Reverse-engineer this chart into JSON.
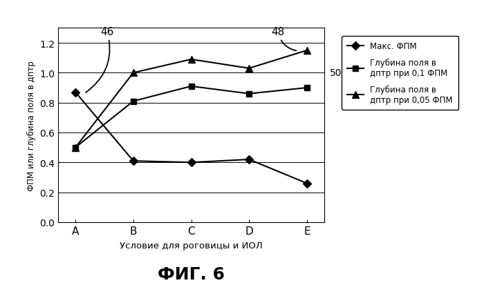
{
  "categories": [
    "A",
    "B",
    "C",
    "D",
    "E"
  ],
  "series_maks_fpm": [
    0.87,
    0.41,
    0.4,
    0.42,
    0.26
  ],
  "series_depth_01": [
    0.5,
    0.81,
    0.91,
    0.86,
    0.9
  ],
  "series_depth_005": [
    0.5,
    1.0,
    1.09,
    1.03,
    1.15
  ],
  "legend_maks": "Макс. ФПМ",
  "legend_depth_01": "Глубина поля в\nдптр при 0,1 ФПМ",
  "legend_depth_005": "Глубина поля в\nдптр при 0,05 ФПМ",
  "ylabel": "ФПМ или глубина поля в дптр",
  "xlabel": "Условие для роговицы и ИОЛ",
  "title": "ФИГ. 6",
  "ylim": [
    0,
    1.3
  ],
  "yticks": [
    0,
    0.2,
    0.4,
    0.6,
    0.8,
    1.0,
    1.2
  ],
  "annotation_46": "46",
  "annotation_48": "48",
  "annotation_50": "50",
  "color_maks": "#000000",
  "color_depth_01": "#000000",
  "color_depth_005": "#000000",
  "background_color": "#ffffff"
}
